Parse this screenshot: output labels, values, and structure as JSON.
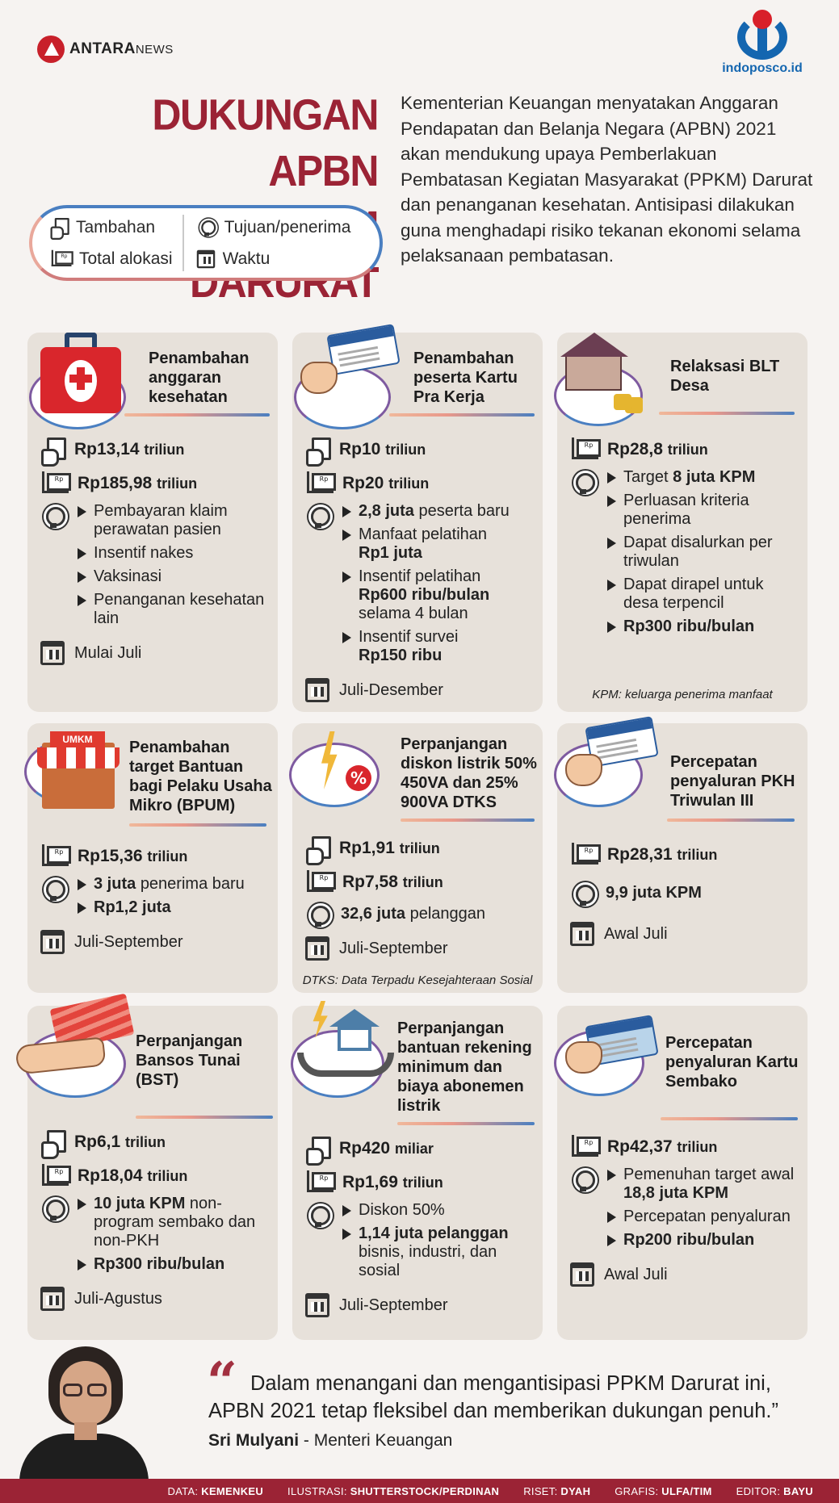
{
  "header": {
    "antara_brand": "ANTARA",
    "antara_suffix": "NEWS",
    "indoposco_brand": "indoposco.id",
    "title_line1": "DUKUNGAN APBN",
    "title_line2": "BAGI PPKM DARURAT",
    "intro": "Kementerian Keuangan menyatakan Anggaran Pendapatan dan Belanja Negara (APBN) 2021 akan mendukung upaya Pemberlakuan Pembatasan Kegiatan Masyarakat (PPKM) Darurat dan penanganan kesehatan. Antisipasi dilakukan guna menghadapi risiko tekanan ekonomi selama pelaksanaan pembatasan."
  },
  "legend": {
    "tambahan": "Tambahan",
    "total_alokasi": "Total alokasi",
    "tujuan": "Tujuan/penerima",
    "waktu": "Waktu"
  },
  "cards": [
    {
      "title": "Penambahan anggaran kesehatan",
      "tambahan_prefix": "Rp",
      "tambahan_value": "13,14",
      "tambahan_unit": "triliun",
      "total_prefix": "Rp",
      "total_value": "185,98",
      "total_unit": "triliun",
      "bullets": [
        "Pembayaran klaim perawatan pasien",
        "Insentif nakes",
        "Vaksinasi",
        "Penanganan kesehatan lain"
      ],
      "time": "Mulai Juli"
    },
    {
      "title": "Penambahan peserta Kartu Pra Kerja",
      "tambahan_prefix": "Rp",
      "tambahan_value": "10",
      "tambahan_unit": "triliun",
      "total_prefix": "Rp",
      "total_value": "20",
      "total_unit": "triliun",
      "b1_bold": "2,8 juta",
      "b1_rest": "peserta baru",
      "b2_text": "Manfaat pelatihan",
      "b2_bold": "Rp1 juta",
      "b3_text": "Insentif pelatihan",
      "b3_bold": "Rp600 ribu/bulan",
      "b3_rest": "selama 4 bulan",
      "b4_text": "Insentif survei",
      "b4_bold": "Rp150 ribu",
      "time": "Juli-Desember"
    },
    {
      "title": "Relaksasi BLT Desa",
      "total_prefix": "Rp",
      "total_value": "28,8",
      "total_unit": "triliun",
      "b1_text": "Target",
      "b1_bold": "8 juta KPM",
      "b2_text": "Perluasan kriteria penerima",
      "b3_text": "Dapat disalurkan per triwulan",
      "b4_text": "Dapat dirapel untuk desa terpencil",
      "b5_bold": "Rp300 ribu/bulan",
      "note": "KPM: keluarga penerima manfaat"
    },
    {
      "title": "Penambahan target Bantuan bagi Pelaku Usaha Mikro (BPUM)",
      "badge": "UMKM",
      "total_prefix": "Rp",
      "total_value": "15,36",
      "total_unit": "triliun",
      "b1_bold": "3 juta",
      "b1_rest": "penerima baru",
      "b2_bold": "Rp1,2 juta",
      "time": "Juli-September"
    },
    {
      "title": "Perpanjangan diskon listrik 50% 450VA dan 25% 900VA DTKS",
      "tambahan_prefix": "Rp",
      "tambahan_value": "1,91",
      "tambahan_unit": "triliun",
      "total_prefix": "Rp",
      "total_value": "7,58",
      "total_unit": "triliun",
      "target_bold": "32,6 juta",
      "target_rest": "pelanggan",
      "time": "Juli-September",
      "note": "DTKS: Data Terpadu Kesejahteraan Sosial"
    },
    {
      "title": "Percepatan penyaluran PKH Triwulan III",
      "total_prefix": "Rp",
      "total_value": "28,31",
      "total_unit": "triliun",
      "target_bold": "9,9 juta KPM",
      "time": "Awal Juli"
    },
    {
      "title": "Perpanjangan Bansos Tunai (BST)",
      "tambahan_prefix": "Rp",
      "tambahan_value": "6,1",
      "tambahan_unit": "triliun",
      "total_prefix": "Rp",
      "total_value": "18,04",
      "total_unit": "triliun",
      "b1_bold": "10 juta KPM",
      "b1_rest": "non-program sembako dan non-PKH",
      "b2_bold": "Rp300 ribu/bulan",
      "time": "Juli-Agustus"
    },
    {
      "title": "Perpanjangan bantuan rekening minimum dan biaya abonemen listrik",
      "tambahan_prefix": "Rp",
      "tambahan_value": "420",
      "tambahan_unit": "miliar",
      "total_prefix": "Rp",
      "total_value": "1,69",
      "total_unit": "triliun",
      "b1_text": "Diskon 50%",
      "b2_bold": "1,14 juta pelanggan",
      "b2_rest": "bisnis, industri, dan sosial",
      "time": "Juli-September"
    },
    {
      "title": "Percepatan penyaluran Kartu Sembako",
      "total_prefix": "Rp",
      "total_value": "42,37",
      "total_unit": "triliun",
      "b1_text": "Pemenuhan target awal",
      "b1_bold": "18,8 juta KPM",
      "b2_text": "Percepatan penyaluran",
      "b3_bold": "Rp200 ribu/bulan",
      "time": "Awal Juli"
    }
  ],
  "quote": {
    "mark": "“",
    "text": "Dalam menangani dan mengantisipasi PPKM Darurat ini, APBN 2021 tetap fleksibel dan memberikan dukungan penuh.”",
    "author": "Sri Mulyani",
    "role": "- Menteri Keuangan"
  },
  "footer": {
    "data_label": "DATA:",
    "data_value": "KEMENKEU",
    "ilustrasi_label": "ILUSTRASI:",
    "ilustrasi_value": "SHUTTERSTOCK/PERDINAN",
    "riset_label": "RISET:",
    "riset_value": "DYAH",
    "grafis_label": "GRAFIS:",
    "grafis_value": "ULFA/TIM",
    "editor_label": "EDITOR:",
    "editor_value": "BAYU"
  },
  "colors": {
    "title": "#9b2335",
    "accent_blue": "#4a7fc1",
    "card_bg": "#e7e1da",
    "footer_bg": "#9b2335"
  }
}
